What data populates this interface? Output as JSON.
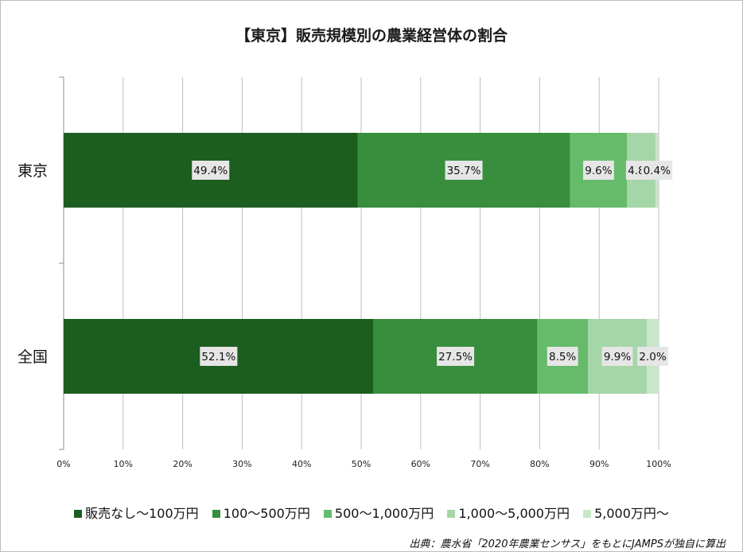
{
  "chart_data": {
    "type": "bar",
    "orientation": "horizontal",
    "stacked": "percent",
    "title": "【東京】販売規模別の農業経営体の割合",
    "categories": [
      "東京",
      "全国"
    ],
    "series": [
      {
        "name": "販売なし～100万円",
        "values": [
          49.4,
          52.1
        ],
        "labels": [
          "49.4%",
          "52.1%"
        ],
        "color": "#1c5e20"
      },
      {
        "name": "100～500万円",
        "values": [
          35.7,
          27.5
        ],
        "labels": [
          "35.7%",
          "27.5%"
        ],
        "color": "#388e3c"
      },
      {
        "name": "500～1,000万円",
        "values": [
          9.6,
          8.5
        ],
        "labels": [
          "9.6%",
          "8.5%"
        ],
        "color": "#66bb6a"
      },
      {
        "name": "1,000～5,000万円",
        "values": [
          4.8,
          9.9
        ],
        "labels": [
          "4.8%",
          "9.9%"
        ],
        "color": "#a5d6a7"
      },
      {
        "name": "5,000万円～",
        "values": [
          0.4,
          2.0
        ],
        "labels": [
          "0.4%",
          "2.0%"
        ],
        "color": "#c8e6c9"
      }
    ],
    "xlim": [
      0,
      100
    ],
    "xticks": [
      "0%",
      "10%",
      "20%",
      "30%",
      "40%",
      "50%",
      "60%",
      "70%",
      "80%",
      "90%",
      "100%"
    ],
    "grid": true,
    "legend_position": "bottom"
  },
  "source": "出典：農水省「2020年農業センサス」をもとにJAMPSが独自に算出"
}
